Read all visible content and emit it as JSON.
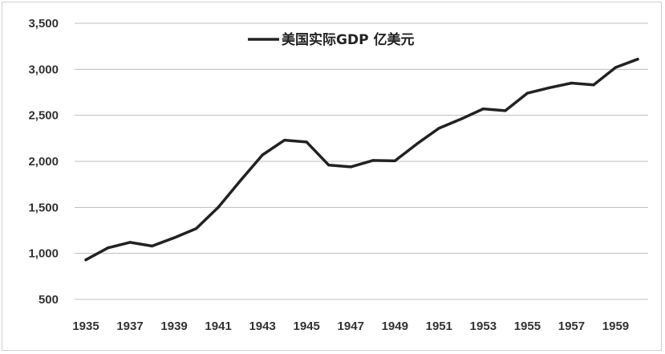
{
  "chart_data": {
    "type": "line",
    "title": "",
    "xlabel": "",
    "ylabel": "",
    "ylim": [
      500,
      3500
    ],
    "yticks": [
      500,
      1000,
      1500,
      2000,
      2500,
      3000,
      3500
    ],
    "ytick_labels": [
      "500",
      "1,000",
      "1,500",
      "2,000",
      "2,500",
      "3,000",
      "3,500"
    ],
    "xlim": [
      1935,
      1960
    ],
    "xticks": [
      1935,
      1937,
      1939,
      1941,
      1943,
      1945,
      1947,
      1949,
      1951,
      1953,
      1955,
      1957,
      1959
    ],
    "xtick_labels": [
      "1935",
      "1937",
      "1939",
      "1941",
      "1943",
      "1945",
      "1947",
      "1949",
      "1951",
      "1953",
      "1955",
      "1957",
      "1959"
    ],
    "grid": true,
    "legend": {
      "position": "top-center",
      "entries": [
        "美国实际GDP 亿美元"
      ]
    },
    "series": [
      {
        "name": "美国实际GDP 亿美元",
        "color": "#222222",
        "x": [
          1935,
          1936,
          1937,
          1938,
          1939,
          1940,
          1941,
          1942,
          1943,
          1944,
          1945,
          1946,
          1947,
          1948,
          1949,
          1950,
          1951,
          1952,
          1953,
          1954,
          1955,
          1956,
          1957,
          1958,
          1959,
          1960
        ],
        "values": [
          930,
          1060,
          1120,
          1080,
          1170,
          1270,
          1500,
          1790,
          2070,
          2230,
          2210,
          1960,
          1940,
          2010,
          2005,
          2190,
          2360,
          2460,
          2570,
          2550,
          2740,
          2800,
          2850,
          2830,
          3020,
          3110
        ]
      }
    ]
  }
}
